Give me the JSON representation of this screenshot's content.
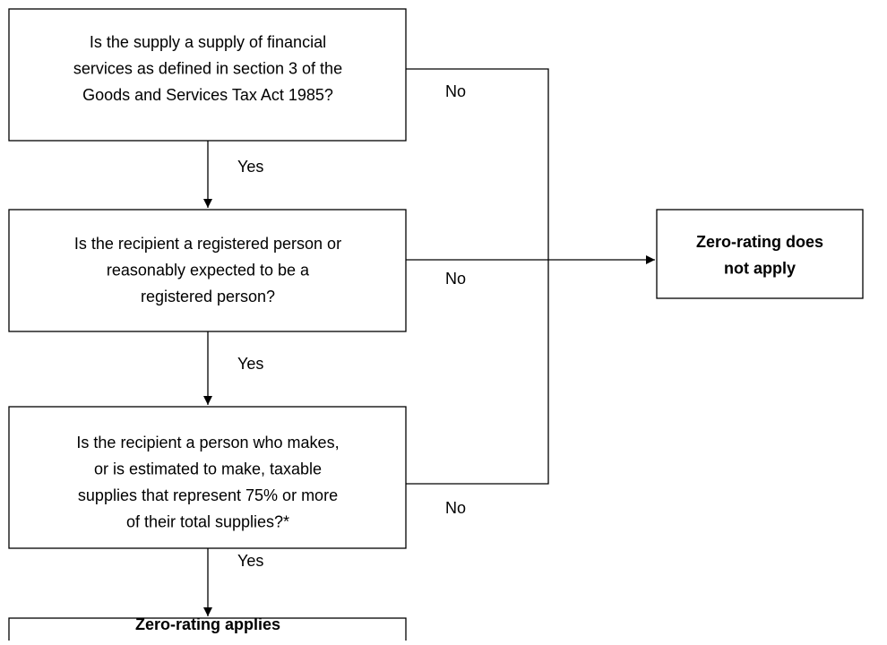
{
  "nodes": [
    {
      "lines": [
        "Is the supply a supply of financial",
        "services as defined in section 3 of the",
        "Goods and Services Tax Act 1985?"
      ]
    },
    {
      "lines": [
        "Is the recipient a registered person or",
        "reasonably expected to be a",
        "registered person?"
      ]
    },
    {
      "lines": [
        "Is the recipient a person who makes,",
        "or is estimated to make, taxable",
        "supplies that represent 75% or more",
        "of their total supplies?*"
      ]
    },
    {
      "lines": [
        "Zero-rating applies"
      ]
    },
    {
      "lines": [
        "Zero-rating does",
        "not apply"
      ]
    }
  ],
  "edges": [
    {
      "label": "Yes"
    },
    {
      "label": "Yes"
    },
    {
      "label": "Yes"
    },
    {
      "label": "No"
    },
    {
      "label": "No"
    },
    {
      "label": "No"
    }
  ]
}
